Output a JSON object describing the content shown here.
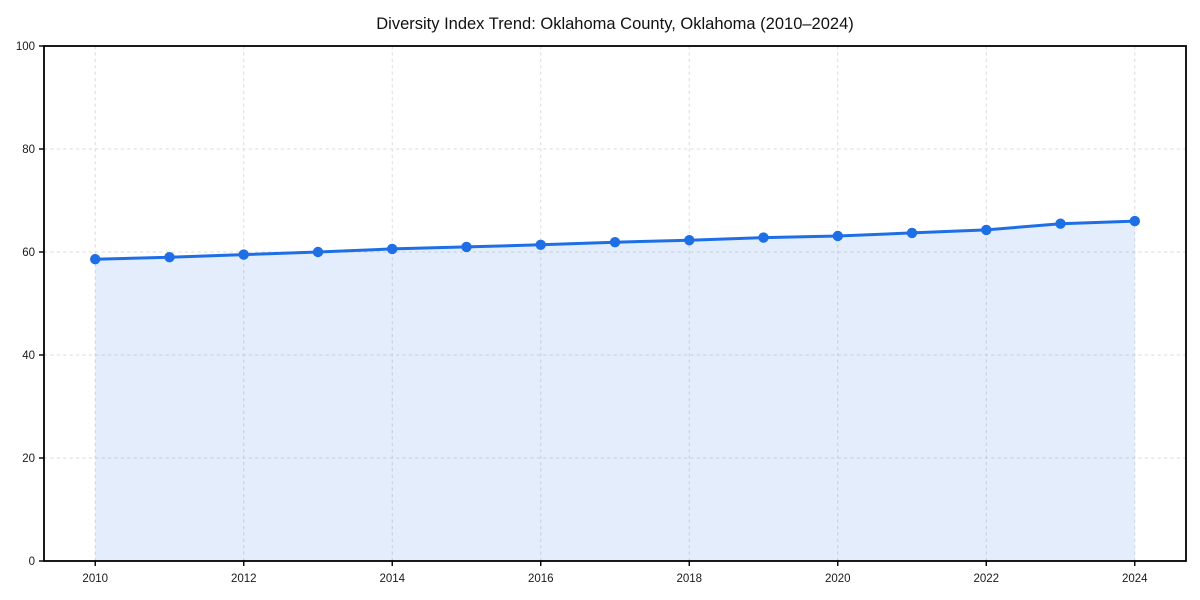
{
  "page": {
    "background": "#ffffff"
  },
  "chart_data": {
    "type": "area",
    "title": "Diversity Index Trend: Oklahoma County, Oklahoma (2010–2024)",
    "x": [
      2010,
      2011,
      2012,
      2013,
      2014,
      2015,
      2016,
      2017,
      2018,
      2019,
      2020,
      2021,
      2022,
      2023,
      2024
    ],
    "values": [
      58.6,
      59.0,
      59.5,
      60.0,
      60.6,
      61.0,
      61.4,
      61.9,
      62.3,
      62.8,
      63.1,
      63.7,
      64.3,
      65.5,
      66.0
    ],
    "xlabel": "",
    "ylabel": "",
    "xlim": [
      2009.31,
      2024.69
    ],
    "ylim": [
      0,
      100
    ],
    "x_ticks": [
      2010,
      2012,
      2014,
      2016,
      2018,
      2020,
      2022,
      2024
    ],
    "y_ticks": [
      0,
      20,
      40,
      60,
      80,
      100
    ],
    "grid": true,
    "grid_style": "dashed",
    "legend": false,
    "marker": "circle",
    "line_width": 3,
    "marker_radius": 5.2,
    "colors": {
      "line": "#1E6EE6",
      "fill": "#1E6EE6",
      "fill_opacity": 0.12,
      "grid": "#DBDBDB",
      "spine": "#000000",
      "tick_label": "#1A1A1A",
      "title": "#111111"
    }
  }
}
